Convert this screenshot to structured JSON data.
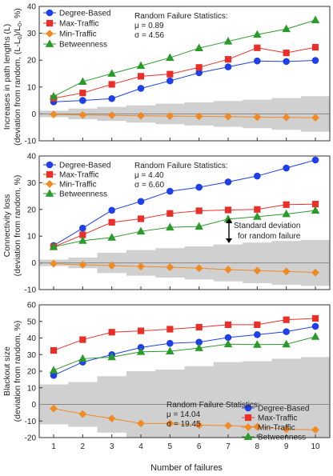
{
  "colors": {
    "Degree-Based": "#1f3fe8",
    "Max-Traffic": "#e8302a",
    "Min-Traffic": "#f08a24",
    "Betweenness": "#2a9a2a",
    "band": "#d0d0d0"
  },
  "x_axis": {
    "label": "Number of failures",
    "ticks": [
      "1",
      "2",
      "3",
      "4",
      "5",
      "6",
      "7",
      "8",
      "9",
      "10"
    ]
  },
  "chart_data": [
    {
      "type": "line",
      "id": "path",
      "ylabel_line1": "Increases in path lengths (L)",
      "ylabel_line2": "(deviation from random, (L-L",
      "ylabel_sub": "0",
      "ylabel_mid": ")/L",
      "ylabel_sub2": "0",
      "ylabel_end": ", %)",
      "ylim": [
        -10,
        40
      ],
      "yticks": [
        "-10",
        "0",
        "10",
        "20",
        "30",
        "40"
      ],
      "yticks_num": [
        -10,
        0,
        10,
        20,
        30,
        40
      ],
      "x": [
        1,
        2,
        3,
        4,
        5,
        6,
        7,
        8,
        9,
        10
      ],
      "legend_position": "top-left",
      "stats": {
        "title": "Random Failure Statistics:",
        "mu": "μ = 0.89",
        "sigma": "σ = 4.56"
      },
      "band": [
        1.2,
        2.0,
        2.6,
        3.2,
        3.8,
        4.3,
        4.8,
        5.3,
        5.9,
        6.6
      ],
      "series": [
        {
          "name": "Degree-Based",
          "marker": "circle",
          "values": [
            4.5,
            5.0,
            5.7,
            9.5,
            12.3,
            15.3,
            17.5,
            19.7,
            19.5,
            19.9
          ]
        },
        {
          "name": "Max-Traffic",
          "marker": "square",
          "values": [
            5.8,
            7.8,
            11.0,
            14.0,
            14.8,
            17.3,
            20.3,
            24.6,
            22.7,
            24.8
          ]
        },
        {
          "name": "Min-Traffic",
          "marker": "diamond",
          "values": [
            -0.2,
            -0.4,
            -0.5,
            -0.7,
            -0.8,
            -0.9,
            -1.0,
            -1.2,
            -1.3,
            -1.4
          ]
        },
        {
          "name": "Betweenness",
          "marker": "triangle",
          "values": [
            6.5,
            12.0,
            15.0,
            17.9,
            20.9,
            24.5,
            27.0,
            29.5,
            31.6,
            34.9
          ]
        }
      ]
    },
    {
      "type": "line",
      "id": "conn",
      "ylabel_line1": "Connectivity loss",
      "ylabel_line2": "(deviation from random, %)",
      "ylim": [
        -10,
        40
      ],
      "yticks": [
        "-10",
        "0",
        "10",
        "20",
        "30",
        "40"
      ],
      "yticks_num": [
        -10,
        0,
        10,
        20,
        30,
        40
      ],
      "x": [
        1,
        2,
        3,
        4,
        5,
        6,
        7,
        8,
        9,
        10
      ],
      "legend_position": "top-left",
      "stats": {
        "title": "Random Failure Statistics:",
        "mu": "μ = 4.40",
        "sigma": "σ = 6.60"
      },
      "annotation": {
        "line1": "Standard deviation",
        "line2": "for random failure"
      },
      "band": [
        1.2,
        2.0,
        3.8,
        4.8,
        5.5,
        6.2,
        6.9,
        7.6,
        8.2,
        8.6
      ],
      "series": [
        {
          "name": "Degree-Based",
          "marker": "circle",
          "values": [
            6.5,
            13.0,
            19.7,
            23.0,
            26.8,
            28.3,
            30.3,
            32.5,
            35.5,
            38.5
          ]
        },
        {
          "name": "Max-Traffic",
          "marker": "square",
          "values": [
            6.0,
            10.5,
            15.2,
            16.5,
            18.5,
            19.5,
            19.8,
            20.0,
            21.8,
            22.0
          ]
        },
        {
          "name": "Min-Traffic",
          "marker": "diamond",
          "values": [
            -0.3,
            -0.7,
            -1.0,
            -1.3,
            -1.6,
            -2.0,
            -2.5,
            -2.9,
            -3.2,
            -3.6
          ]
        },
        {
          "name": "Betweenness",
          "marker": "triangle",
          "values": [
            6.0,
            8.3,
            9.5,
            11.8,
            13.3,
            13.6,
            16.4,
            17.3,
            18.3,
            19.6
          ]
        }
      ]
    },
    {
      "type": "line",
      "id": "blackout",
      "ylabel_line1": "Blackout size",
      "ylabel_line2": "(deviation from random, %)",
      "ylim": [
        -20,
        60
      ],
      "yticks": [
        "-20",
        "-10",
        "0",
        "10",
        "20",
        "30",
        "40",
        "50",
        "60"
      ],
      "yticks_num": [
        -20,
        -10,
        0,
        10,
        20,
        30,
        40,
        50,
        60
      ],
      "x": [
        1,
        2,
        3,
        4,
        5,
        6,
        7,
        8,
        9,
        10
      ],
      "legend_position": "bottom-right",
      "stats": {
        "title": "Random Failure Statistics:",
        "mu": "μ = 14.04",
        "sigma": "σ = 19.45"
      },
      "band": [
        12.0,
        13.5,
        17.0,
        20.0,
        21.0,
        23.0,
        25.5,
        26.0,
        27.5,
        28.5
      ],
      "series": [
        {
          "name": "Degree-Based",
          "marker": "circle",
          "values": [
            17.5,
            25.5,
            30.0,
            34.3,
            36.8,
            37.5,
            40.3,
            42.0,
            43.8,
            47.0
          ]
        },
        {
          "name": "Max-Traffic",
          "marker": "square",
          "values": [
            32.5,
            39.0,
            43.5,
            44.3,
            45.3,
            46.5,
            48.0,
            48.0,
            51.0,
            51.8
          ]
        },
        {
          "name": "Min-Traffic",
          "marker": "diamond",
          "values": [
            -2.5,
            -5.8,
            -8.5,
            -11.5,
            -11.5,
            -12.5,
            -12.8,
            -13.5,
            -15.0,
            -15.3
          ]
        },
        {
          "name": "Betweenness",
          "marker": "triangle",
          "values": [
            20.5,
            27.5,
            28.5,
            31.7,
            32.0,
            34.0,
            36.3,
            36.0,
            36.2,
            40.8
          ]
        }
      ]
    }
  ]
}
